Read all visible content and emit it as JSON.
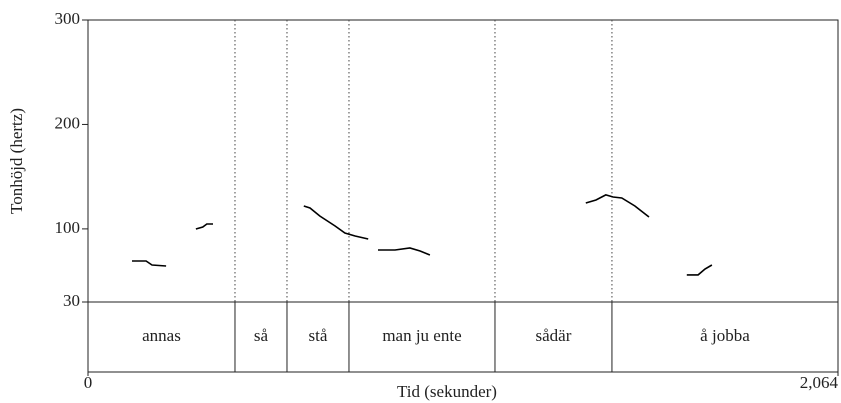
{
  "chart_data": {
    "type": "line",
    "xlabel": "Tid (sekunder)",
    "ylabel": "Tonhöjd (hertz)",
    "xlim": [
      0,
      2.064
    ],
    "xticks": [
      0,
      {
        "value": 2.064,
        "label": "2,064"
      }
    ],
    "ylim": [
      30,
      300
    ],
    "yticks": [
      30,
      100,
      200,
      300
    ],
    "color": "#000000",
    "series": [
      {
        "x": [
          0.121,
          0.16,
          0.176,
          0.215
        ],
        "values": [
          69.3,
          69.3,
          65.4,
          64.5
        ]
      },
      {
        "x": [
          0.297,
          0.316,
          0.327,
          0.344
        ],
        "values": [
          99.9,
          101.8,
          104.7,
          104.7
        ]
      },
      {
        "x": [
          0.594,
          0.611,
          0.638,
          0.68,
          0.707,
          0.735,
          0.771
        ],
        "values": [
          121.9,
          120,
          112.3,
          102.8,
          96.1,
          93.2,
          90.3
        ]
      },
      {
        "x": [
          0.798,
          0.845,
          0.886,
          0.914,
          0.941
        ],
        "values": [
          79.8,
          79.8,
          81.7,
          78.8,
          75
        ]
      },
      {
        "x": [
          1.37,
          1.398,
          1.425,
          1.445,
          1.469,
          1.505,
          1.544
        ],
        "values": [
          124.8,
          127.7,
          132.5,
          130.5,
          129.6,
          121.9,
          111.4
        ]
      },
      {
        "x": [
          1.648,
          1.679,
          1.698,
          1.717
        ],
        "values": [
          55.9,
          55.9,
          61.6,
          65.4
        ]
      }
    ],
    "tiers": [
      {
        "label": "annas",
        "start": 0,
        "end": 0.4045
      },
      {
        "label": "så",
        "start": 0.4045,
        "end": 0.5476
      },
      {
        "label": "stå",
        "start": 0.5476,
        "end": 0.7182
      },
      {
        "label": "man ju ente",
        "start": 0.7182,
        "end": 1.12
      },
      {
        "label": "sådär",
        "start": 1.12,
        "end": 1.4419
      },
      {
        "label": "å jobba",
        "start": 1.4419,
        "end": 2.064
      }
    ]
  }
}
